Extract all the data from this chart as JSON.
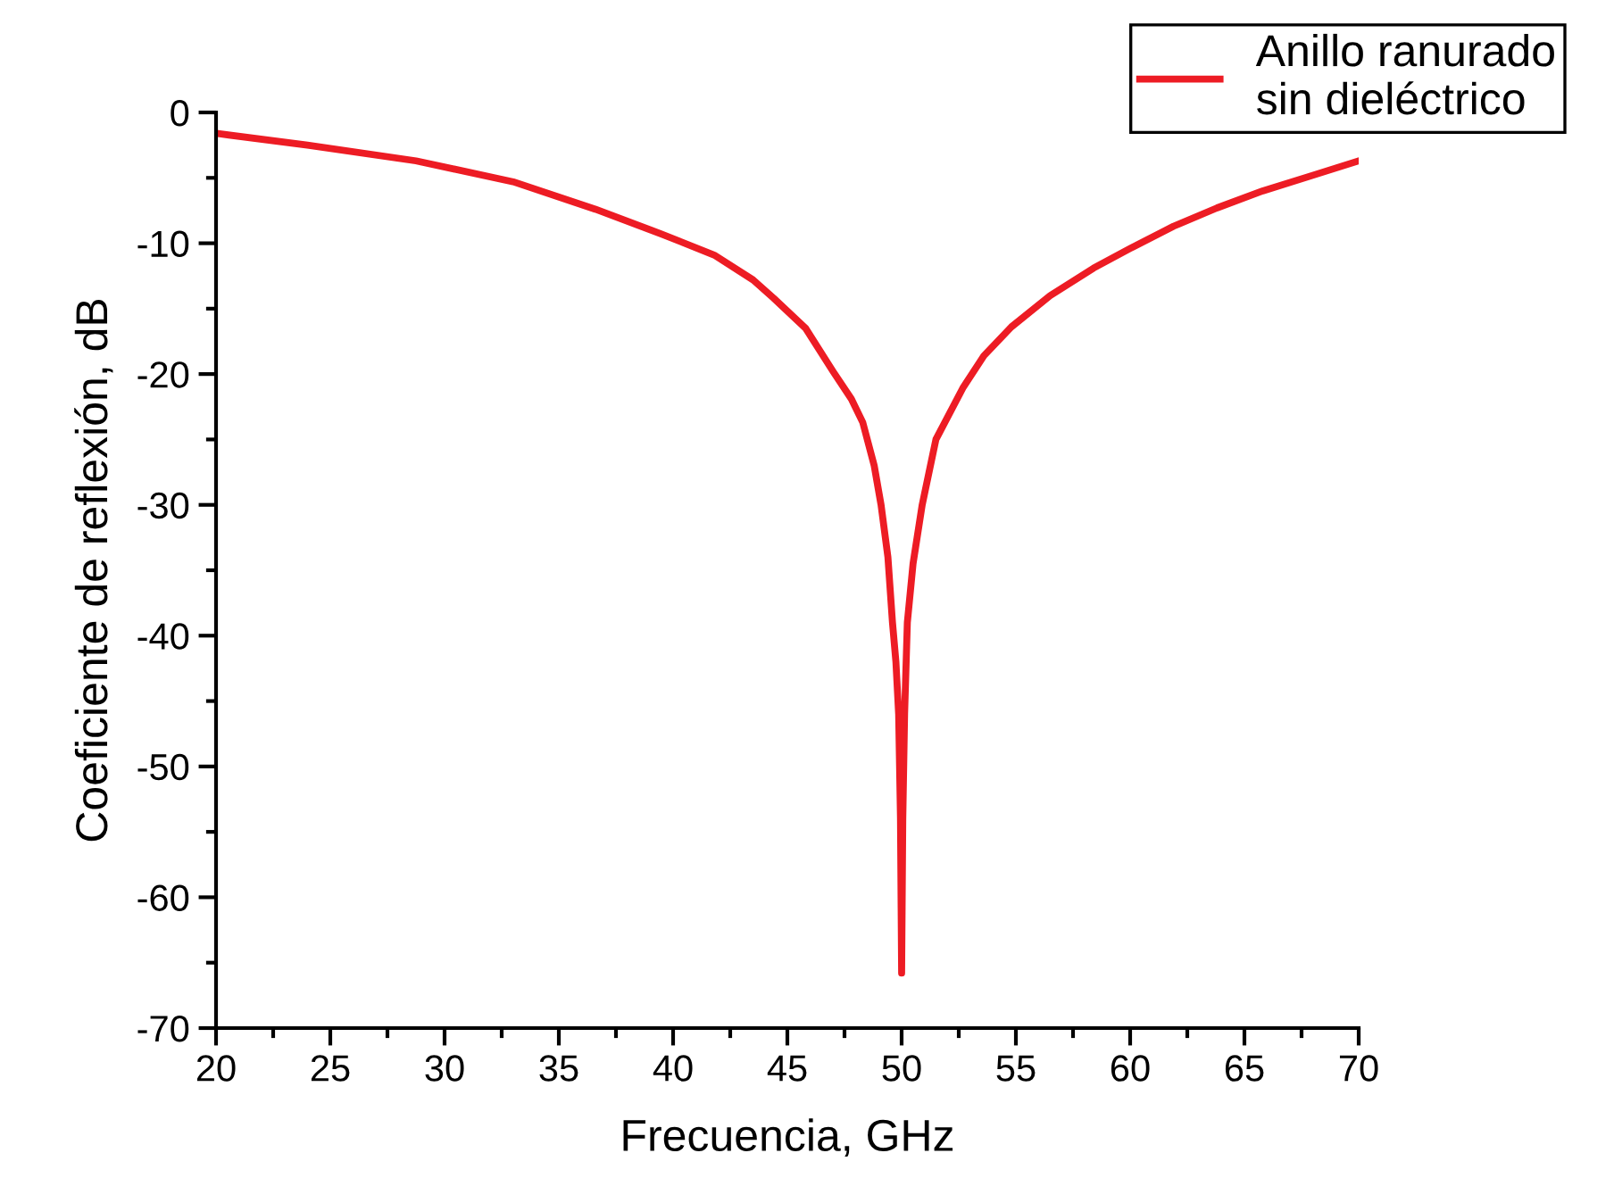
{
  "chart_data": {
    "type": "line",
    "xlabel": "Frecuencia, GHz",
    "ylabel": "Coeficiente de reflexión, dB",
    "xlim": [
      20,
      70
    ],
    "xticks": [
      20,
      25,
      30,
      35,
      40,
      45,
      50,
      55,
      60,
      65,
      70
    ],
    "ylim": [
      -70,
      0
    ],
    "yticks": [
      -70,
      -60,
      -50,
      -40,
      -30,
      -20,
      -10,
      0
    ],
    "grid": false,
    "legend": "top right",
    "marker": "none",
    "line_style": "solid",
    "series": [
      {
        "name": "Anillo ranurado\nsin dieléctrico",
        "color": "#ed1c24",
        "x": [
          20,
          24,
          28.75,
          33,
          36.6,
          39.5,
          41.8,
          43.5,
          44.4,
          45.8,
          47.0,
          47.8,
          48.3,
          48.8,
          49.1,
          49.4,
          49.6,
          49.75,
          49.87,
          49.95,
          50.0,
          50.05,
          50.13,
          50.25,
          50.5,
          50.9,
          51.5,
          52.7,
          53.6,
          54.8,
          56.5,
          58.4,
          60,
          61.9,
          63.8,
          65.8,
          68,
          70
        ],
        "values": [
          -1.6,
          -2.5,
          -3.7,
          -5.3,
          -7.4,
          -9.3,
          -10.9,
          -12.8,
          -14.2,
          -16.5,
          -19.8,
          -21.9,
          -23.7,
          -27,
          -30.0,
          -34,
          -39,
          -42,
          -46,
          -54,
          -65.8,
          -54,
          -46,
          -39,
          -34.5,
          -30,
          -25,
          -21,
          -18.6,
          -16.4,
          -14,
          -11.9,
          -10.4,
          -8.7,
          -7.3,
          -6.0,
          -4.8,
          -3.7
        ]
      }
    ]
  }
}
